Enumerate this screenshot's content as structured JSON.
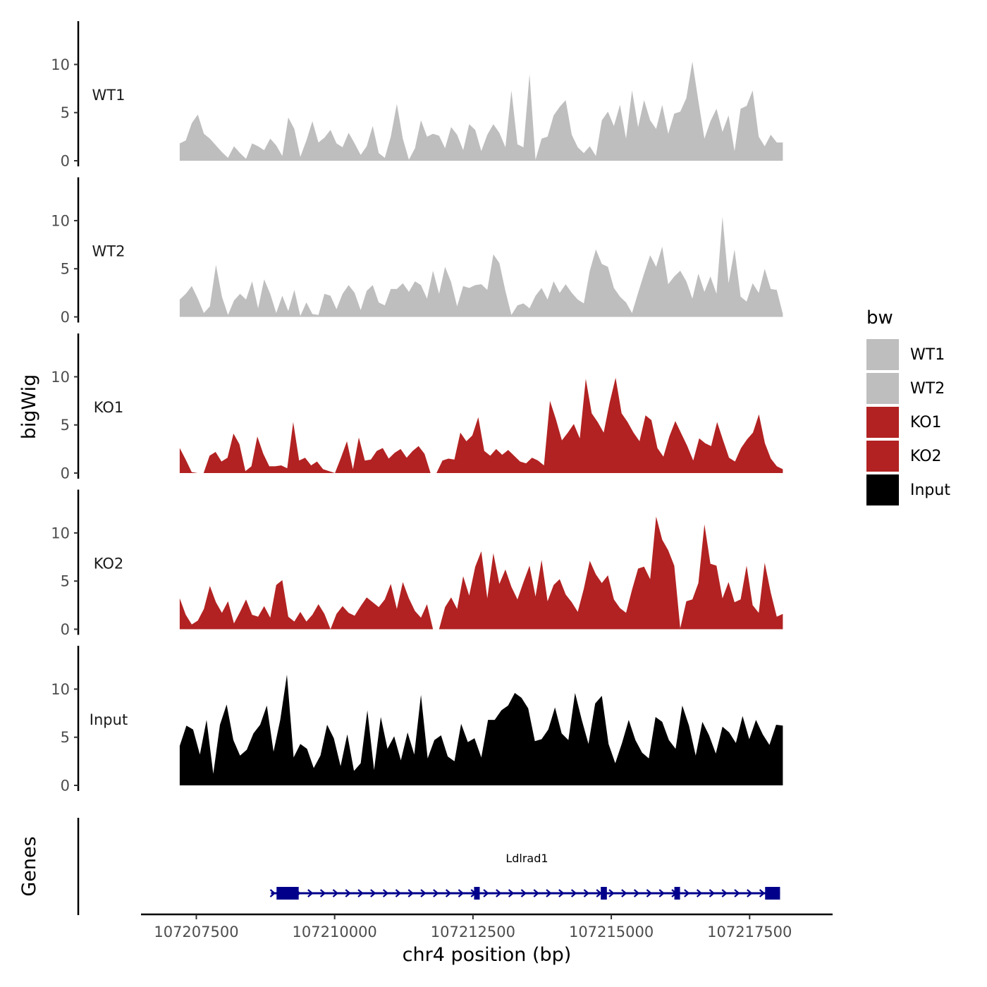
{
  "chart_data": {
    "type": "area",
    "y_axis_title": "bigWig",
    "x_axis_title": "chr4 position (bp)",
    "x_range": [
      107206500,
      107219000
    ],
    "data_range": [
      107207200,
      107218100
    ],
    "x_ticks": [
      {
        "value": 107207500,
        "label": "107207500"
      },
      {
        "value": 107210000,
        "label": "107210000"
      },
      {
        "value": 107212500,
        "label": "107212500"
      },
      {
        "value": 107215000,
        "label": "107215000"
      },
      {
        "value": 107217500,
        "label": "107217500"
      }
    ],
    "y_range": [
      0,
      14.5
    ],
    "y_ticks": [
      {
        "value": 0,
        "label": "0"
      },
      {
        "value": 5,
        "label": "5"
      },
      {
        "value": 10,
        "label": "10"
      }
    ],
    "legend": {
      "title": "bw",
      "entries": [
        {
          "label": "WT1",
          "color": "#bebebe"
        },
        {
          "label": "WT2",
          "color": "#bebebe"
        },
        {
          "label": "KO1",
          "color": "#b22222"
        },
        {
          "label": "KO2",
          "color": "#b22222"
        },
        {
          "label": "Input",
          "color": "#000000"
        }
      ]
    },
    "series": [
      {
        "name": "WT1",
        "label": "WT1",
        "color": "#bebebe",
        "values": [
          1.8,
          2.1,
          3.9,
          4.8,
          2.8,
          2.3,
          1.6,
          0.9,
          0.3,
          1.5,
          0.8,
          0.2,
          1.8,
          1.5,
          1.1,
          2.3,
          1.6,
          0.5,
          4.5,
          3.3,
          0.4,
          2.1,
          4.1,
          1.9,
          2.4,
          3.2,
          1.8,
          1.4,
          2.9,
          1.8,
          0.6,
          1.5,
          3.6,
          0.8,
          0.3,
          2.5,
          5.9,
          2.3,
          0.1,
          1.3,
          4.2,
          2.5,
          2.8,
          2.6,
          1.3,
          3.5,
          2.7,
          1.1,
          3.8,
          3.2,
          1.0,
          2.7,
          3.8,
          2.9,
          1.4,
          7.3,
          1.7,
          1.4,
          9.0,
          0.1,
          2.3,
          2.5,
          4.7,
          5.6,
          6.3,
          2.7,
          1.4,
          0.8,
          1.5,
          0.5,
          4.2,
          5.1,
          3.6,
          5.8,
          2.3,
          7.3,
          3.5,
          6.3,
          4.2,
          3.3,
          5.8,
          2.8,
          4.9,
          5.1,
          6.5,
          10.3,
          6.2,
          2.3,
          4.1,
          5.4,
          3.0,
          4.7,
          1.0,
          5.4,
          5.7,
          7.3,
          2.5,
          1.5,
          2.7,
          1.9,
          1.9
        ]
      },
      {
        "name": "WT2",
        "label": "WT2",
        "color": "#bebebe",
        "values": [
          1.8,
          2.4,
          3.2,
          1.9,
          0.4,
          1.1,
          5.4,
          2.1,
          0.2,
          1.7,
          2.4,
          1.8,
          3.7,
          0.9,
          3.9,
          2.4,
          0.4,
          2.2,
          0.6,
          2.8,
          0.1,
          1.5,
          0.3,
          0.2,
          2.4,
          2.2,
          0.8,
          2.4,
          3.3,
          2.5,
          0.7,
          2.7,
          3.3,
          1.5,
          1.2,
          2.9,
          2.9,
          3.5,
          2.6,
          3.7,
          3.3,
          1.9,
          4.8,
          2.4,
          5.2,
          3.6,
          1.1,
          3.2,
          3.0,
          3.3,
          3.4,
          2.8,
          6.5,
          5.6,
          2.7,
          0.2,
          1.2,
          1.4,
          0.9,
          2.2,
          3.0,
          1.8,
          3.7,
          2.5,
          3.4,
          2.5,
          1.8,
          1.4,
          4.8,
          7.0,
          5.5,
          5.2,
          3.0,
          2.1,
          1.5,
          0.4,
          2.5,
          4.5,
          6.4,
          5.2,
          7.3,
          3.4,
          4.2,
          4.8,
          3.7,
          1.9,
          4.5,
          2.6,
          4.2,
          2.4,
          10.4,
          3.5,
          7.0,
          2.1,
          1.6,
          3.5,
          2.5,
          5.0,
          2.9,
          2.8,
          0.3
        ]
      },
      {
        "name": "KO1",
        "label": "KO1",
        "color": "#b22222",
        "values": [
          2.6,
          1.4,
          0.1,
          0.0,
          0.0,
          1.8,
          2.2,
          1.2,
          1.6,
          4.1,
          3.0,
          0.2,
          0.7,
          3.8,
          2.0,
          0.7,
          0.7,
          0.8,
          0.5,
          5.3,
          1.3,
          1.6,
          0.8,
          1.2,
          0.4,
          0.2,
          0.0,
          1.6,
          3.3,
          0.4,
          3.7,
          1.3,
          1.4,
          2.3,
          2.6,
          1.5,
          2.1,
          2.5,
          1.6,
          2.3,
          2.8,
          2.0,
          0.0,
          0.0,
          1.3,
          1.5,
          1.4,
          4.2,
          3.3,
          3.9,
          5.8,
          2.3,
          1.8,
          2.5,
          1.9,
          2.4,
          1.8,
          1.2,
          1.0,
          1.6,
          1.3,
          0.8,
          7.5,
          5.6,
          3.4,
          4.2,
          5.1,
          3.6,
          9.8,
          6.2,
          5.3,
          4.2,
          7.3,
          9.9,
          6.2,
          5.3,
          4.2,
          3.3,
          6.0,
          5.5,
          2.6,
          1.7,
          3.8,
          5.4,
          4.1,
          2.8,
          1.3,
          3.6,
          3.1,
          2.8,
          5.3,
          3.4,
          1.6,
          1.2,
          2.6,
          3.5,
          4.2,
          6.1,
          3.1,
          1.5,
          0.7,
          0.4
        ]
      },
      {
        "name": "KO2",
        "label": "KO2",
        "color": "#b22222",
        "values": [
          3.2,
          1.5,
          0.5,
          0.9,
          2.1,
          4.5,
          2.8,
          1.7,
          2.9,
          0.6,
          1.8,
          3.1,
          1.5,
          1.3,
          2.4,
          1.2,
          4.6,
          5.1,
          1.3,
          0.8,
          1.8,
          0.8,
          1.5,
          2.6,
          1.6,
          0.0,
          1.6,
          2.4,
          1.7,
          1.4,
          2.4,
          3.3,
          2.8,
          2.3,
          3.1,
          4.7,
          2.1,
          4.9,
          3.2,
          1.9,
          1.2,
          2.6,
          0.0,
          0.0,
          2.3,
          3.3,
          2.1,
          5.5,
          3.5,
          6.5,
          8.1,
          3.2,
          7.9,
          4.7,
          6.2,
          4.4,
          3.1,
          4.9,
          6.6,
          3.4,
          7.2,
          2.9,
          4.6,
          5.2,
          3.6,
          2.8,
          1.8,
          4.2,
          7.1,
          5.7,
          4.8,
          5.6,
          3.1,
          2.2,
          1.7,
          4.1,
          6.3,
          6.5,
          5.2,
          11.7,
          9.3,
          8.2,
          6.6,
          0.1,
          2.9,
          3.1,
          4.8,
          10.9,
          6.8,
          6.6,
          3.2,
          4.9,
          2.8,
          3.1,
          6.6,
          2.5,
          1.7,
          6.9,
          3.8,
          1.3,
          1.6
        ]
      },
      {
        "name": "Input",
        "label": "Input",
        "color": "#000000",
        "values": [
          4.1,
          6.2,
          5.8,
          3.2,
          6.8,
          1.2,
          6.3,
          8.4,
          4.7,
          3.1,
          3.7,
          5.4,
          6.3,
          8.3,
          3.5,
          6.8,
          11.5,
          2.9,
          4.3,
          3.8,
          1.8,
          3.1,
          6.3,
          4.9,
          2.0,
          5.3,
          1.5,
          2.3,
          7.8,
          1.6,
          7.1,
          3.8,
          5.1,
          2.6,
          5.5,
          3.2,
          9.4,
          2.8,
          4.7,
          5.2,
          3.0,
          2.5,
          6.4,
          4.5,
          4.9,
          2.9,
          6.8,
          6.8,
          7.8,
          8.3,
          9.6,
          9.1,
          8.0,
          4.6,
          4.8,
          5.8,
          8.1,
          5.4,
          4.7,
          9.6,
          6.8,
          4.3,
          8.5,
          9.3,
          4.3,
          2.3,
          4.4,
          6.8,
          4.7,
          3.4,
          2.8,
          7.1,
          6.6,
          4.7,
          3.8,
          8.3,
          6.2,
          3.1,
          6.6,
          5.2,
          3.3,
          6.1,
          5.5,
          4.4,
          7.2,
          4.8,
          6.8,
          5.3,
          4.2,
          6.3,
          6.2
        ]
      }
    ],
    "genes_track": {
      "title": "Genes",
      "gene_name": "Ldlrad1",
      "color": "#00008b",
      "gene_start": 107208850,
      "gene_end": 107218050,
      "strand": "+",
      "exons": [
        {
          "start": 107208950,
          "end": 107209350
        },
        {
          "start": 107212520,
          "end": 107212600
        },
        {
          "start": 107214810,
          "end": 107214920
        },
        {
          "start": 107216140,
          "end": 107216220
        },
        {
          "start": 107217780,
          "end": 107218050
        }
      ]
    }
  }
}
